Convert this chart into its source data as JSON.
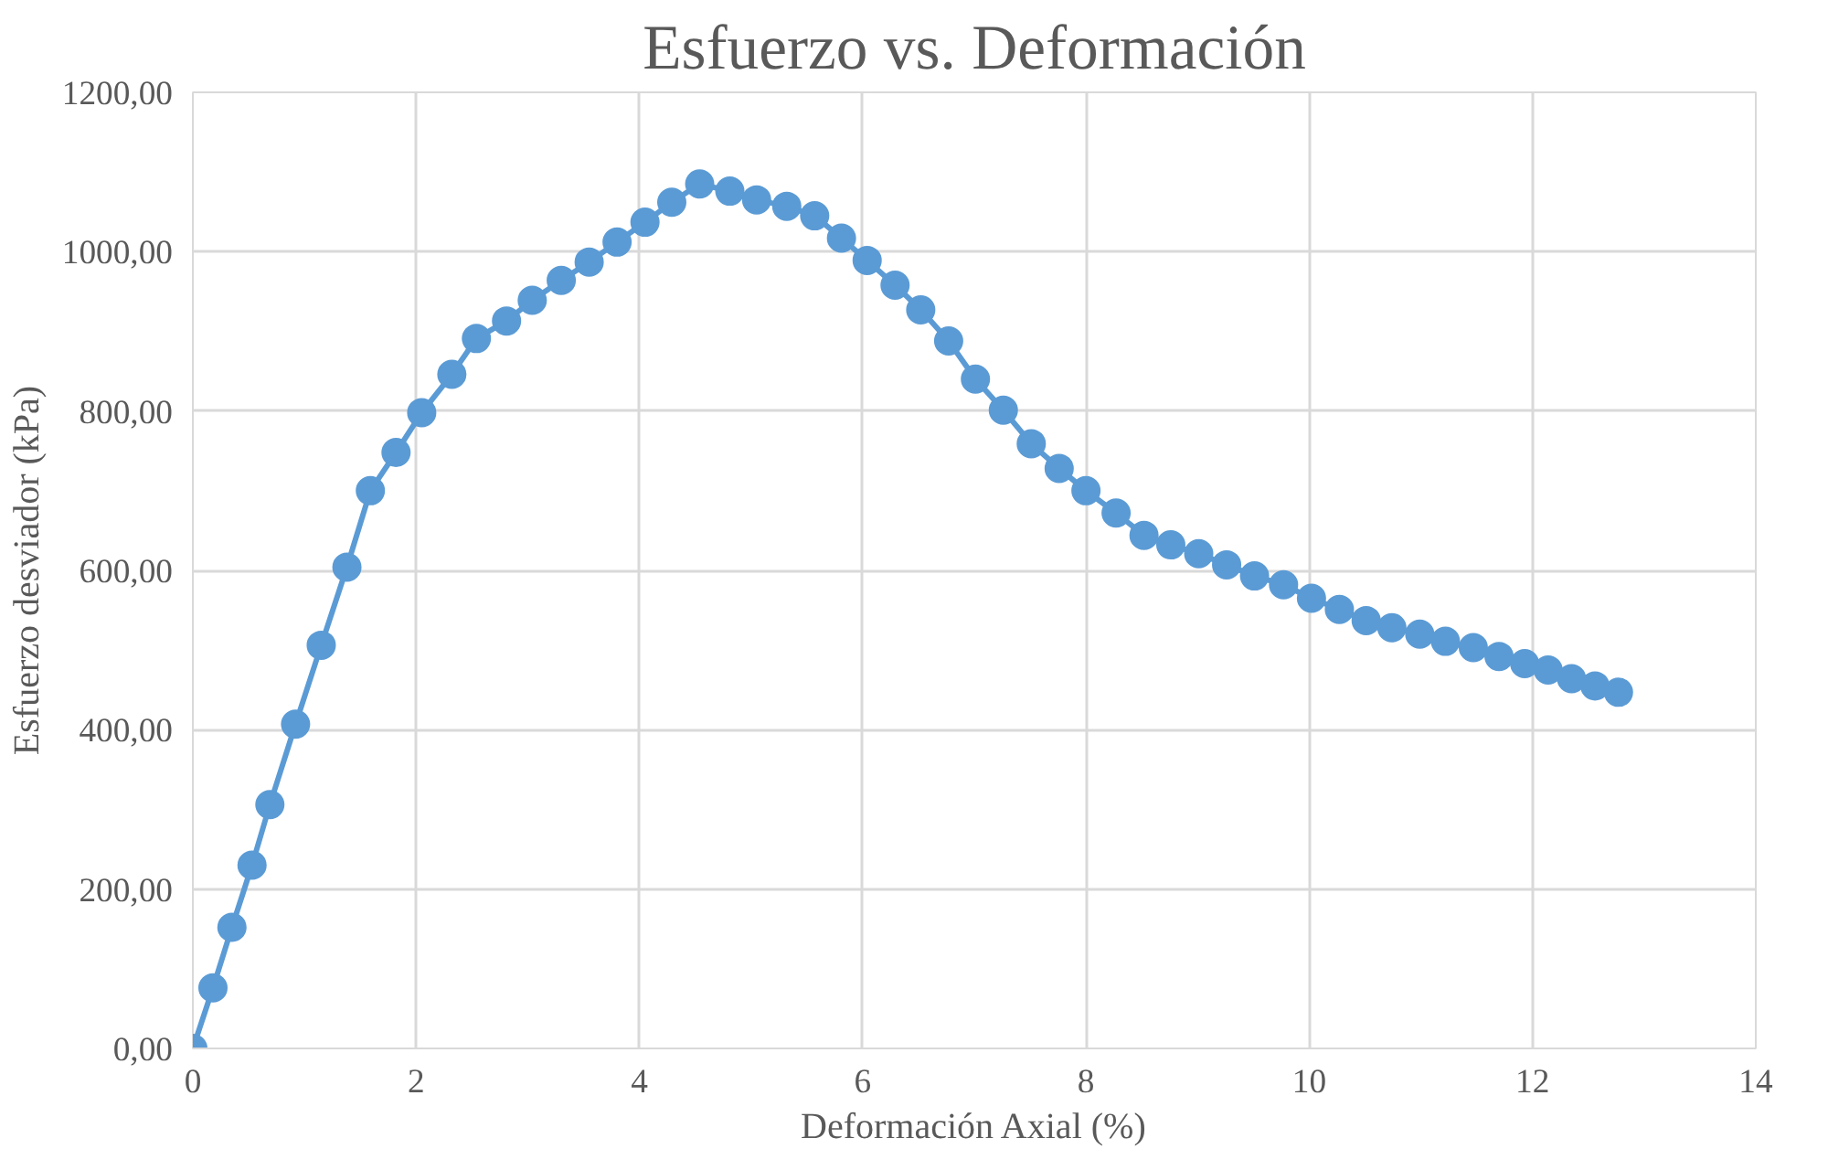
{
  "chart_data": {
    "type": "line",
    "title": "Esfuerzo vs. Deformación",
    "xlabel": "Deformación Axial (%)",
    "ylabel": "Esfuerzo desviador (kPa)",
    "xlim": [
      0,
      14
    ],
    "xticks": [
      0,
      2,
      4,
      6,
      8,
      10,
      12,
      14
    ],
    "ylim": [
      0,
      1200
    ],
    "yticks": [
      {
        "value": 0,
        "label": "0,00"
      },
      {
        "value": 200,
        "label": "200,00"
      },
      {
        "value": 400,
        "label": "400,00"
      },
      {
        "value": 600,
        "label": "600,00"
      },
      {
        "value": 800,
        "label": "800,00"
      },
      {
        "value": 1000,
        "label": "1000,00"
      },
      {
        "value": 1200,
        "label": "1200,00"
      }
    ],
    "grid": true,
    "marker": "circle",
    "line_style": "solid",
    "series": [
      {
        "color": "#5b9bd5",
        "x": [
          0,
          0.18,
          0.35,
          0.53,
          0.69,
          0.92,
          1.15,
          1.38,
          1.59,
          1.82,
          2.05,
          2.32,
          2.54,
          2.81,
          3.04,
          3.3,
          3.55,
          3.8,
          4.05,
          4.29,
          4.54,
          4.81,
          5.05,
          5.32,
          5.57,
          5.81,
          6.04,
          6.29,
          6.52,
          6.77,
          7.01,
          7.26,
          7.51,
          7.76,
          8.0,
          8.27,
          8.52,
          8.76,
          9.01,
          9.26,
          9.51,
          9.77,
          10.02,
          10.27,
          10.51,
          10.74,
          10.99,
          11.22,
          11.47,
          11.7,
          11.93,
          12.14,
          12.35,
          12.56,
          12.77
        ],
        "values": [
          0,
          76,
          152,
          230,
          306,
          407,
          506,
          604,
          700,
          748,
          798,
          846,
          891,
          913,
          939,
          964,
          987,
          1012,
          1037,
          1062,
          1085,
          1076,
          1065,
          1057,
          1045,
          1017,
          989,
          958,
          927,
          888,
          840,
          801,
          759,
          728,
          700,
          672,
          644,
          632,
          621,
          607,
          593,
          582,
          565,
          551,
          537,
          528,
          520,
          511,
          503,
          492,
          483,
          475,
          464,
          455,
          447
        ]
      }
    ]
  }
}
